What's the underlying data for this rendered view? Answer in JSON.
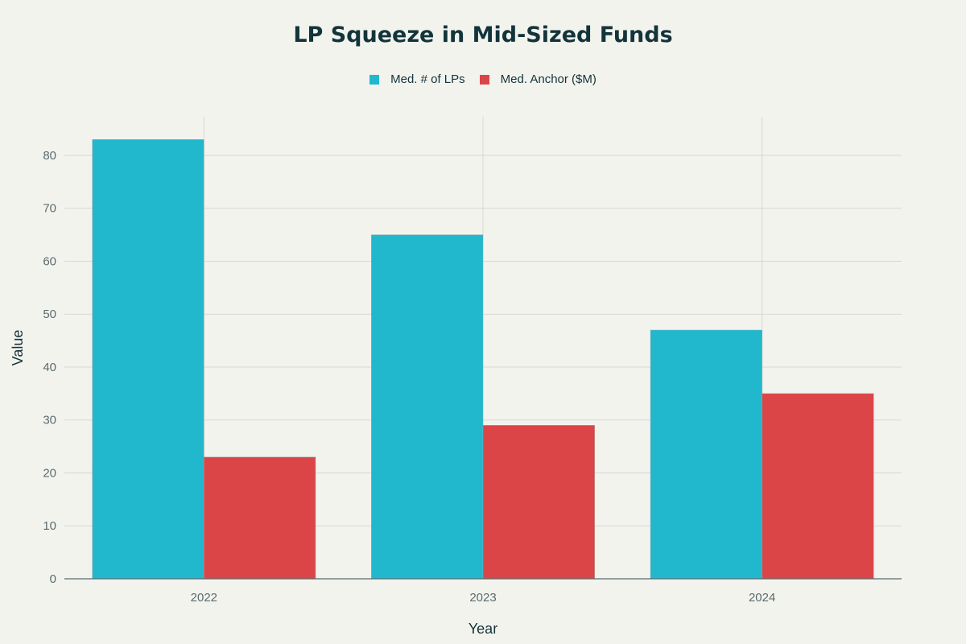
{
  "chart_data": {
    "type": "bar",
    "title": "LP Squeeze in Mid-Sized Funds",
    "xlabel": "Year",
    "ylabel": "Value",
    "categories": [
      "2022",
      "2023",
      "2024"
    ],
    "series": [
      {
        "name": "Med. # of LPs",
        "color": "#21b8cd",
        "values": [
          83,
          65,
          47
        ]
      },
      {
        "name": "Med. Anchor ($M)",
        "color": "#dc4548",
        "values": [
          23,
          29,
          35
        ]
      }
    ],
    "ylim": [
      0,
      87.3
    ],
    "yticks": [
      0,
      10,
      20,
      30,
      40,
      50,
      60,
      70,
      80
    ],
    "grid": true,
    "legend": "top-center"
  }
}
